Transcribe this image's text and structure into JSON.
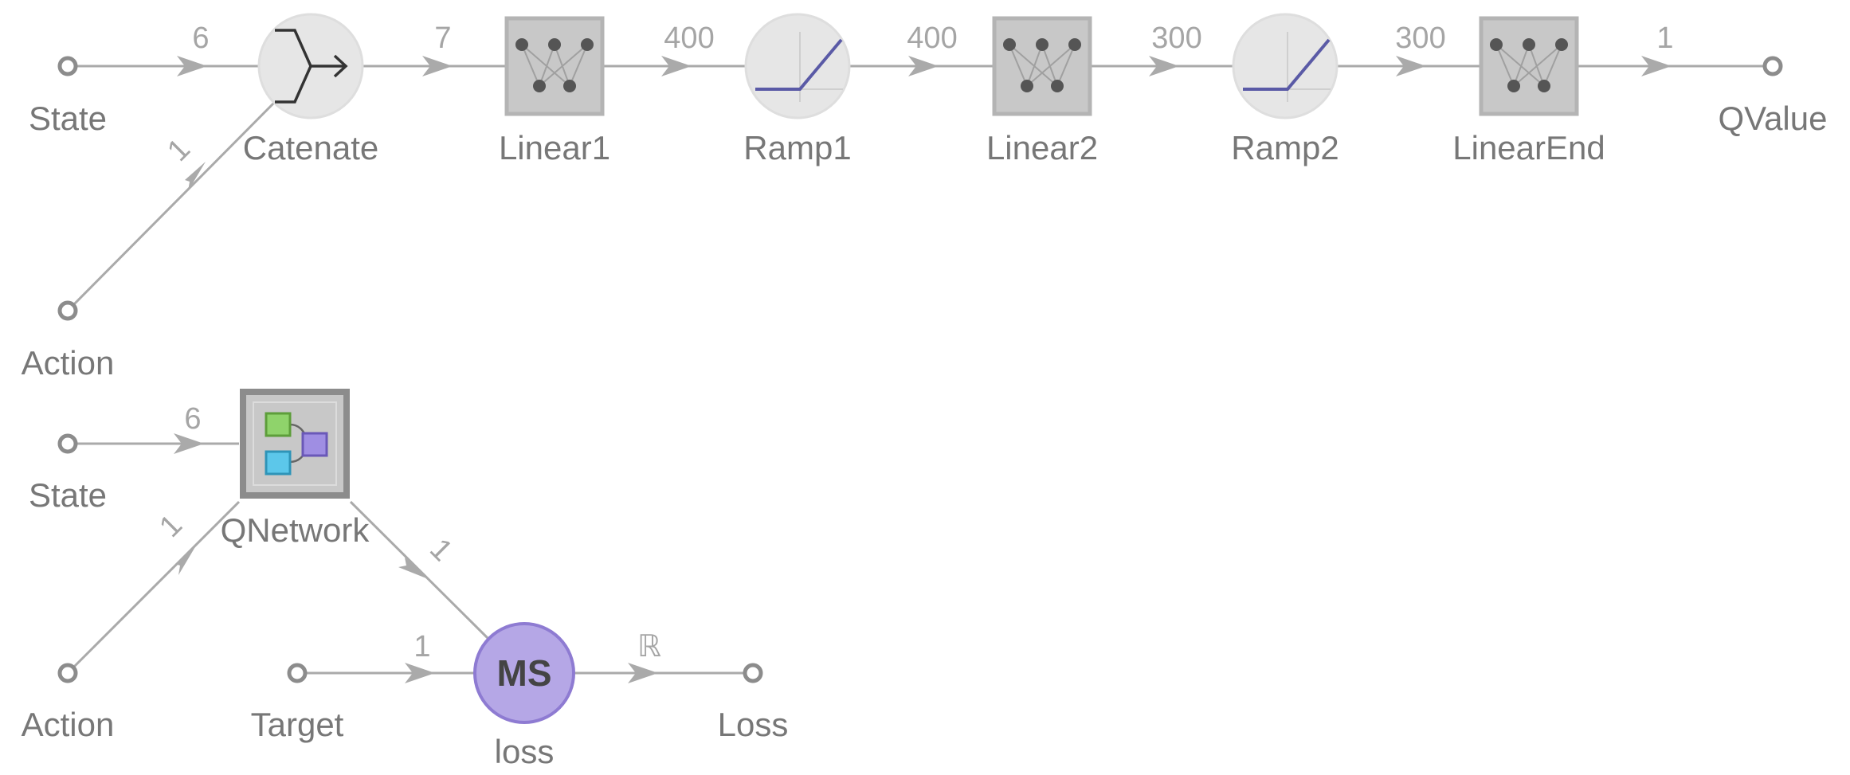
{
  "graph_top": {
    "nodes": {
      "catenate": "Catenate",
      "linear1": "Linear1",
      "ramp1": "Ramp1",
      "linear2": "Linear2",
      "ramp2": "Ramp2",
      "linear_end": "LinearEnd"
    },
    "ports": {
      "state": "State",
      "action": "Action",
      "qvalue": "QValue"
    },
    "dims": {
      "state": "6",
      "action": "1",
      "catenate_out": "7",
      "linear1_out": "400",
      "ramp1_out": "400",
      "linear2_out": "300",
      "ramp2_out": "300",
      "linear_end_out": "1"
    }
  },
  "graph_bottom": {
    "nodes": {
      "qnetwork": "QNetwork",
      "loss": "loss",
      "loss_symbol": "MS"
    },
    "ports": {
      "state": "State",
      "action": "Action",
      "target": "Target",
      "loss": "Loss"
    },
    "dims": {
      "state": "6",
      "action": "1",
      "qnetwork_out": "1",
      "target": "1",
      "loss_out": "ℝ"
    }
  },
  "colors": {
    "wire": "#aaaaaa",
    "node_fill": "#e6e6e6",
    "linear_box": "#c8c8c8",
    "ramp_line": "#5a5aa6",
    "loss_fill": "#b5a7e6",
    "loss_stroke": "#8e7bd2"
  }
}
